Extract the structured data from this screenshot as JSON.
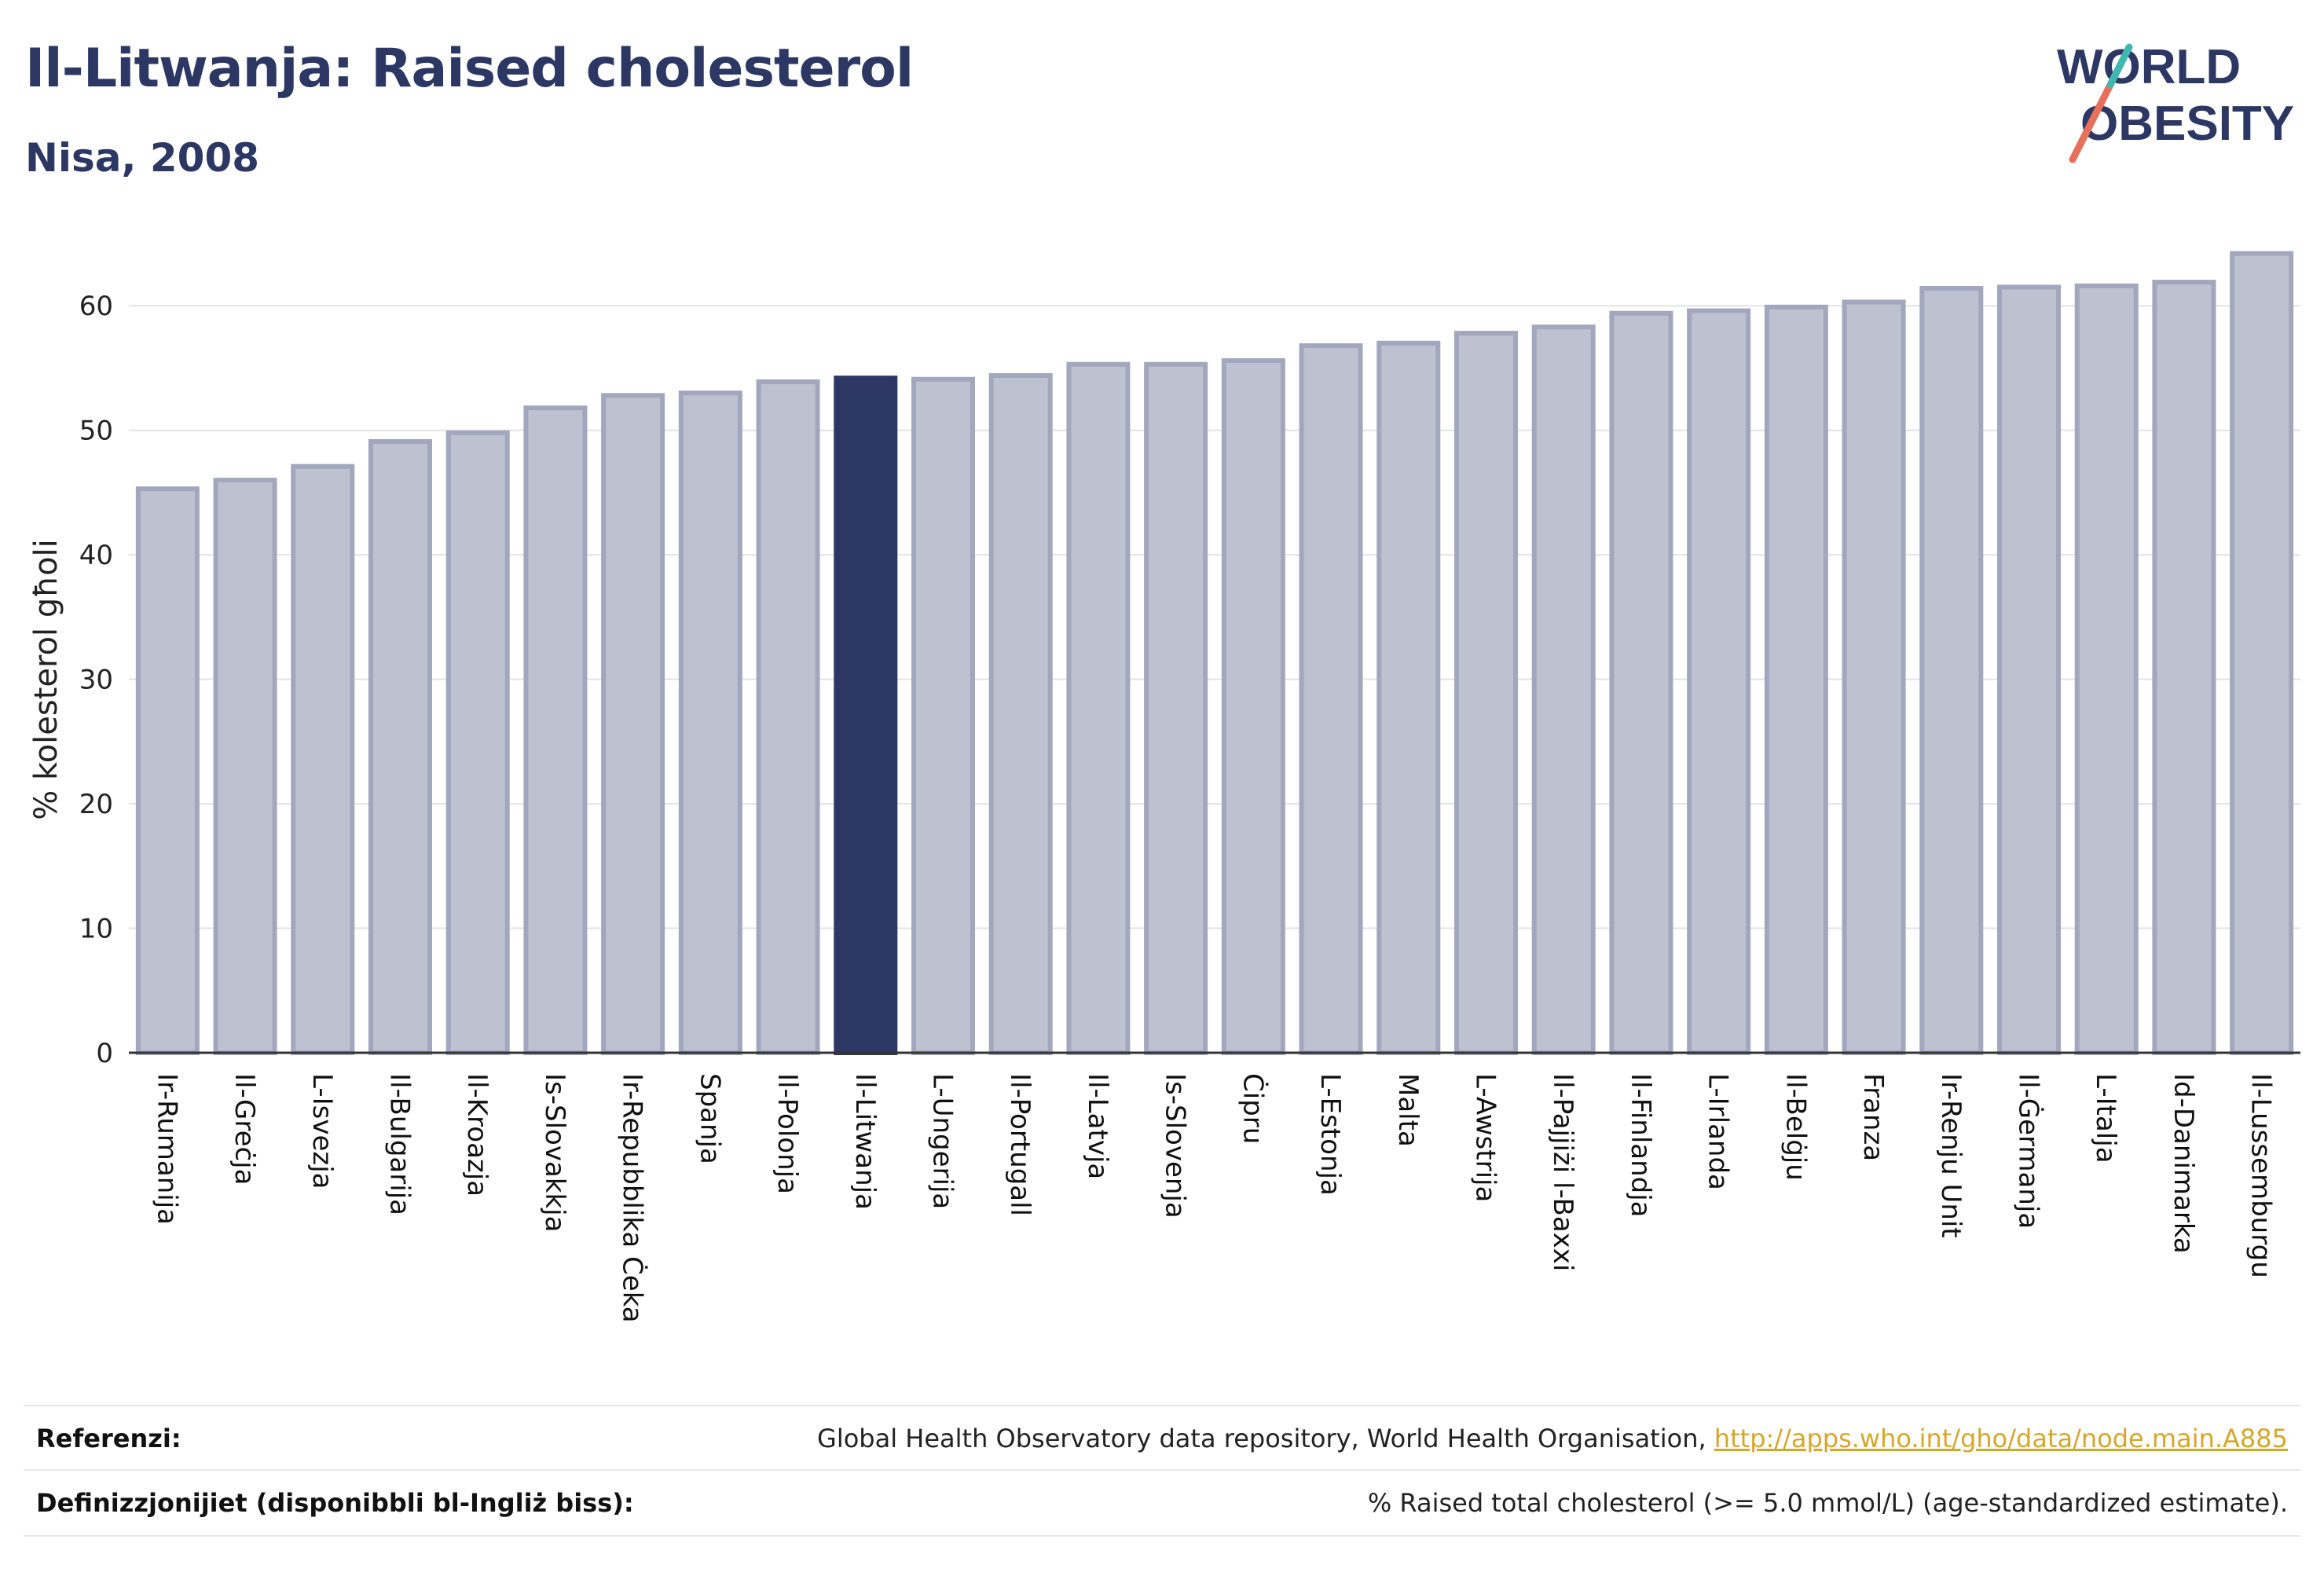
{
  "header": {
    "title": "Il-Litwanja: Raised cholesterol",
    "subtitle": "Nisa, 2008"
  },
  "logo": {
    "line1": "WORLD",
    "line2": "OBESITY",
    "accent_colors": [
      "#e8705a",
      "#3fb8b0"
    ]
  },
  "colors": {
    "bar": "#bec1d0",
    "bar_border": "#a2a7bd",
    "highlight": "#2c3764",
    "grid": "#e3e3e3",
    "axis": "#333333",
    "link": "#d4a72c"
  },
  "chart_data": {
    "type": "bar",
    "ylabel": "% kolesterol għoli",
    "ylim": [
      0,
      65
    ],
    "yticks": [
      0,
      10,
      20,
      30,
      40,
      50,
      60
    ],
    "grid": true,
    "highlight": "Il-Litwanja",
    "categories": [
      "Ir-Rumanija",
      "Il-Greċja",
      "L-Isvezja",
      "Il-Bulgarija",
      "Il-Kroazja",
      "Is-Slovakkja",
      "Ir-Repubblika Ċeka",
      "Spanja",
      "Il-Polonja",
      "Il-Litwanja",
      "L-Ungerija",
      "Il-Portugall",
      "Il-Latvja",
      "Is-Slovenja",
      "Ċipru",
      "L-Estonja",
      "Malta",
      "L-Awstrija",
      "Il-Pajjiżi l-Baxxi",
      "Il-Finlandja",
      "L-Irlanda",
      "Il-Belġju",
      "Franza",
      "Ir-Renju Unit",
      "Il-Ġermanja",
      "L-Italja",
      "Id-Danimarka",
      "Il-Lussemburgu"
    ],
    "values": [
      45.3,
      46.0,
      47.1,
      49.1,
      49.8,
      51.8,
      52.8,
      53.0,
      53.9,
      54.2,
      54.1,
      54.4,
      55.3,
      55.3,
      55.6,
      56.8,
      57.0,
      57.8,
      58.3,
      59.4,
      59.6,
      59.9,
      60.3,
      61.4,
      61.5,
      61.6,
      61.9,
      64.2
    ]
  },
  "footer": {
    "references_label": "Referenzi:",
    "references_text": "Global Health Observatory data repository, World Health Organisation, ",
    "references_link": "http://apps.who.int/gho/data/node.main.A885",
    "definitions_label": "Definizzjonijiet (disponibbli bl-Ingliż biss):",
    "definitions_text": "% Raised total cholesterol (>= 5.0 mmol/L) (age-standardized estimate)."
  }
}
